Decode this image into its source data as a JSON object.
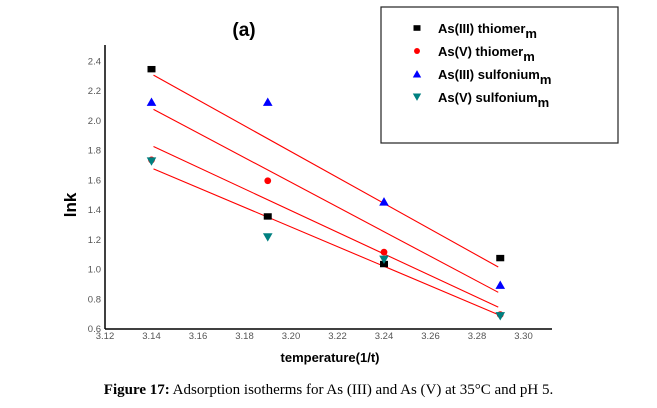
{
  "chart_data": {
    "type": "scatter",
    "title": "(a)",
    "xlabel": "temperature(1/t)",
    "ylabel": "lnk",
    "xlim": [
      3.12,
      3.31
    ],
    "ylim": [
      0.6,
      2.48
    ],
    "xticks": [
      "3.12",
      "3.14",
      "3.16",
      "3.18",
      "3.20",
      "3.22",
      "3.24",
      "3.26",
      "3.28",
      "3.30"
    ],
    "yticks": [
      "0.6",
      "0.8",
      "1.0",
      "1.2",
      "1.4",
      "1.6",
      "1.8",
      "2.0",
      "2.2",
      "2.4"
    ],
    "grid": false,
    "legend_position": "top-right",
    "series": [
      {
        "name": "As(III) thiomer",
        "subscript": "m",
        "marker": "square",
        "color": "#000000",
        "x": [
          3.14,
          3.19,
          3.24,
          3.29
        ],
        "y": [
          2.34,
          1.35,
          1.03,
          1.07
        ]
      },
      {
        "name": "As(V) thiomer",
        "subscript": "m",
        "marker": "circle",
        "color": "#ff0000",
        "x": [
          3.14,
          3.19,
          3.24,
          3.29
        ],
        "y": [
          1.73,
          1.59,
          1.11,
          0.69
        ]
      },
      {
        "name": "As(III) sulfonium",
        "subscript": "m",
        "marker": "triangle-up",
        "color": "#0000ff",
        "x": [
          3.14,
          3.19,
          3.24,
          3.29
        ],
        "y": [
          2.12,
          2.12,
          1.45,
          0.89
        ]
      },
      {
        "name": "As(V) sulfonium",
        "subscript": "m",
        "marker": "triangle-down",
        "color": "#008080",
        "x": [
          3.14,
          3.19,
          3.24,
          3.29
        ],
        "y": [
          1.72,
          1.21,
          1.06,
          0.68
        ]
      }
    ],
    "fit_lines": [
      {
        "x": [
          3.14,
          3.29
        ],
        "y": [
          2.3,
          1.01
        ],
        "color": "#ff0000"
      },
      {
        "x": [
          3.14,
          3.29
        ],
        "y": [
          2.07,
          0.84
        ],
        "color": "#ff0000"
      },
      {
        "x": [
          3.14,
          3.29
        ],
        "y": [
          1.82,
          0.74
        ],
        "color": "#ff0000"
      },
      {
        "x": [
          3.14,
          3.29
        ],
        "y": [
          1.67,
          0.69
        ],
        "color": "#ff0000"
      }
    ]
  },
  "caption": {
    "label": "Figure 17:",
    "text": " Adsorption isotherms for As (III) and As (V) at 35°C and pH 5."
  }
}
